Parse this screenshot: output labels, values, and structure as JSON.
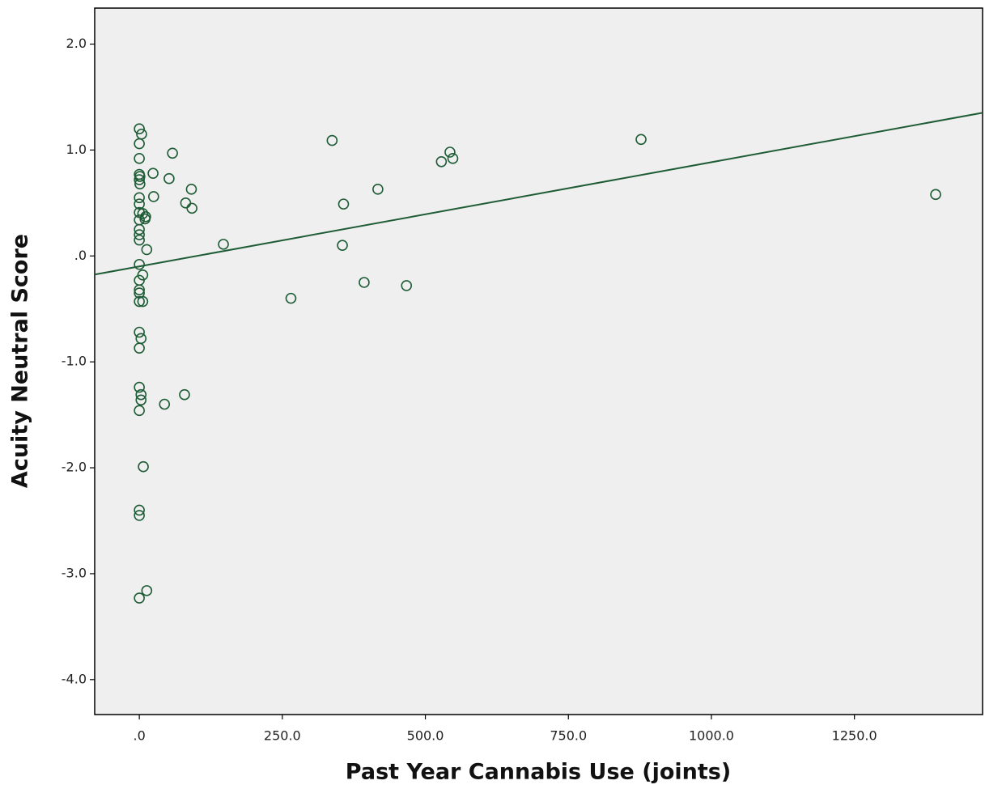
{
  "chart_data": {
    "type": "scatter",
    "x_label": "Past Year Cannabis Use (joints)",
    "y_label": "Acuity Neutral Score",
    "color": "#1e5c36",
    "x": [
      0,
      4,
      0,
      0,
      0,
      1,
      0,
      1,
      0,
      0,
      0,
      6,
      11,
      0,
      10,
      0,
      0,
      0,
      13,
      0,
      6,
      0,
      0,
      0,
      0,
      6,
      0,
      3,
      0,
      0,
      3,
      3,
      0,
      7,
      0,
      0,
      0,
      13,
      24,
      25,
      58,
      52,
      81,
      91,
      92,
      44,
      79,
      147,
      265,
      337,
      357,
      355,
      393,
      417,
      467,
      528,
      543,
      548,
      877,
      1392
    ],
    "values": [
      1.2,
      1.15,
      1.06,
      0.92,
      0.77,
      0.75,
      0.72,
      0.68,
      0.55,
      0.49,
      0.41,
      0.4,
      0.37,
      0.34,
      0.35,
      0.25,
      0.2,
      0.15,
      0.06,
      -0.08,
      -0.18,
      -0.23,
      -0.32,
      -0.35,
      -0.43,
      -0.43,
      -0.72,
      -0.78,
      -0.87,
      -1.24,
      -1.31,
      -1.36,
      -1.46,
      -1.99,
      -2.4,
      -2.45,
      -3.23,
      -3.16,
      0.78,
      0.56,
      0.97,
      0.73,
      0.5,
      0.63,
      0.45,
      -1.4,
      -1.31,
      0.11,
      -0.4,
      1.09,
      0.49,
      0.1,
      -0.25,
      0.63,
      -0.28,
      0.89,
      0.98,
      0.92,
      1.1,
      0.58
    ],
    "fit_line": {
      "intercept": -0.099,
      "slope": 0.000984
    },
    "xlim": [
      -78,
      1474
    ],
    "ylim": [
      -4.33,
      2.34
    ],
    "xticks": [
      {
        "value": 0,
        "label": ".0"
      },
      {
        "value": 250,
        "label": "250.0"
      },
      {
        "value": 500,
        "label": "500.0"
      },
      {
        "value": 750,
        "label": "750.0"
      },
      {
        "value": 1000,
        "label": "1000.0"
      },
      {
        "value": 1250,
        "label": "1250.0"
      }
    ],
    "yticks": [
      {
        "value": 2,
        "label": "2.0"
      },
      {
        "value": 1,
        "label": "1.0"
      },
      {
        "value": 0,
        "label": ".0"
      },
      {
        "value": -1,
        "label": "-1.0"
      },
      {
        "value": -2,
        "label": "-2.0"
      },
      {
        "value": -3,
        "label": "-3.0"
      },
      {
        "value": -4,
        "label": "-4.0"
      }
    ]
  }
}
